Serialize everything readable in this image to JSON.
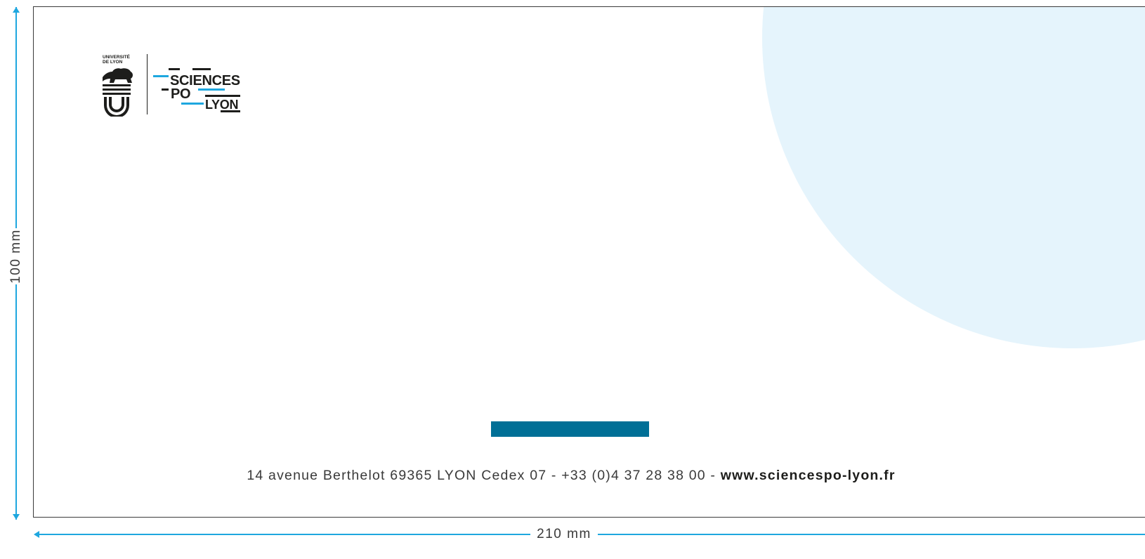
{
  "logo": {
    "universite_lines": [
      "UNIVERSITÉ",
      "DE LYON"
    ],
    "sciences_po_words": [
      "SCIENCES",
      "PO",
      "LYON"
    ]
  },
  "address": {
    "text": "14 avenue Berthelot 69365 LYON Cedex 07 - +33 (0)4 37 28 38 00 - ",
    "url": "www.sciencespo-lyon.fr"
  },
  "dimensions": {
    "height_label": "100 mm",
    "width_label": "210 mm"
  },
  "colors": {
    "accent_cyan": "#1ea7df",
    "stripe_blue": "#006f96",
    "circle_fill": "#e5f4fc",
    "text_dark": "#1d1d1b"
  }
}
